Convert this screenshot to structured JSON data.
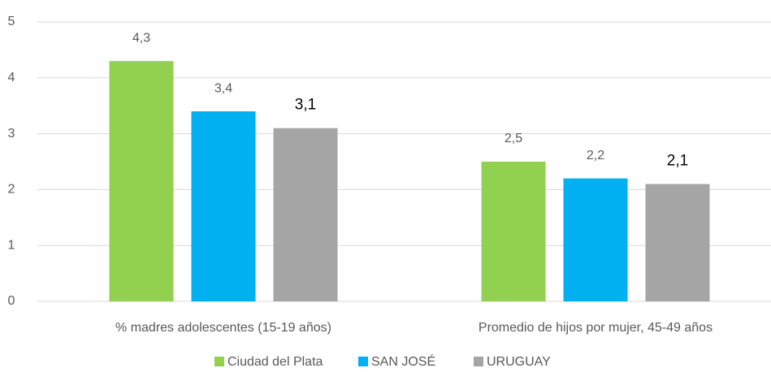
{
  "chart_data": {
    "type": "bar",
    "categories": [
      "% madres adolescentes (15-19 años)",
      "Promedio de hijos por mujer, 45-49 años"
    ],
    "series": [
      {
        "name": "Ciudad del Plata",
        "color": "#92d050",
        "values": [
          4.3,
          2.5
        ],
        "value_labels": [
          "4,3",
          "2,5"
        ]
      },
      {
        "name": "SAN JOSÉ",
        "color": "#00b0f0",
        "values": [
          3.4,
          2.2
        ],
        "value_labels": [
          "3,4",
          "2,2"
        ]
      },
      {
        "name": "URUGUAY",
        "color": "#a5a5a5",
        "values": [
          3.1,
          2.1
        ],
        "value_labels": [
          "3,1",
          "2,1"
        ]
      }
    ],
    "ylim": [
      0,
      5
    ],
    "yticks": [
      0,
      1,
      2,
      3,
      4,
      5
    ],
    "grid": true,
    "legend": "bottom"
  }
}
